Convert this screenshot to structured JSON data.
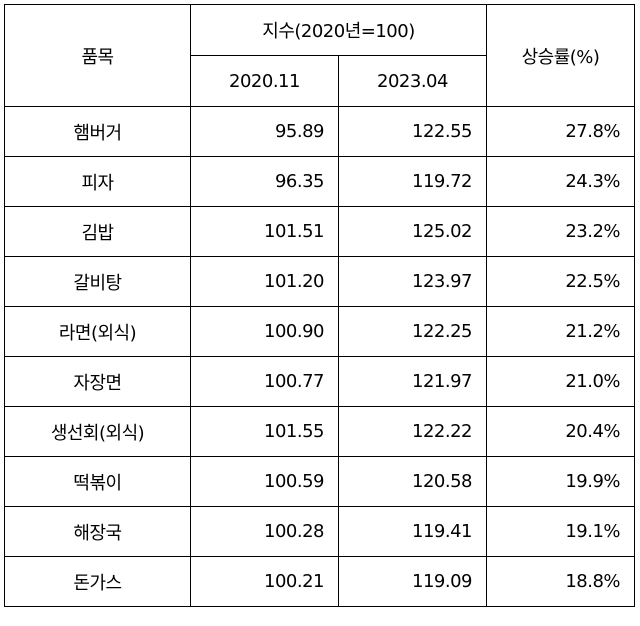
{
  "table": {
    "headers": {
      "item": "품목",
      "index_group": "지수(2020년=100)",
      "col_a": "2020.11",
      "col_b": "2023.04",
      "rate": "상승률(%)"
    },
    "rows": [
      {
        "item": "햄버거",
        "v2020": "95.89",
        "v2023": "122.55",
        "rate": "27.8%"
      },
      {
        "item": "피자",
        "v2020": "96.35",
        "v2023": "119.72",
        "rate": "24.3%"
      },
      {
        "item": "김밥",
        "v2020": "101.51",
        "v2023": "125.02",
        "rate": "23.2%"
      },
      {
        "item": "갈비탕",
        "v2020": "101.20",
        "v2023": "123.97",
        "rate": "22.5%"
      },
      {
        "item": "라면(외식)",
        "v2020": "100.90",
        "v2023": "122.25",
        "rate": "21.2%"
      },
      {
        "item": "자장면",
        "v2020": "100.77",
        "v2023": "121.97",
        "rate": "21.0%"
      },
      {
        "item": "생선회(외식)",
        "v2020": "101.55",
        "v2023": "122.22",
        "rate": "20.4%"
      },
      {
        "item": "떡볶이",
        "v2020": "100.59",
        "v2023": "120.58",
        "rate": "19.9%"
      },
      {
        "item": "해장국",
        "v2020": "100.28",
        "v2023": "119.41",
        "rate": "19.1%"
      },
      {
        "item": "돈가스",
        "v2020": "100.21",
        "v2023": "119.09",
        "rate": "18.8%"
      }
    ]
  }
}
